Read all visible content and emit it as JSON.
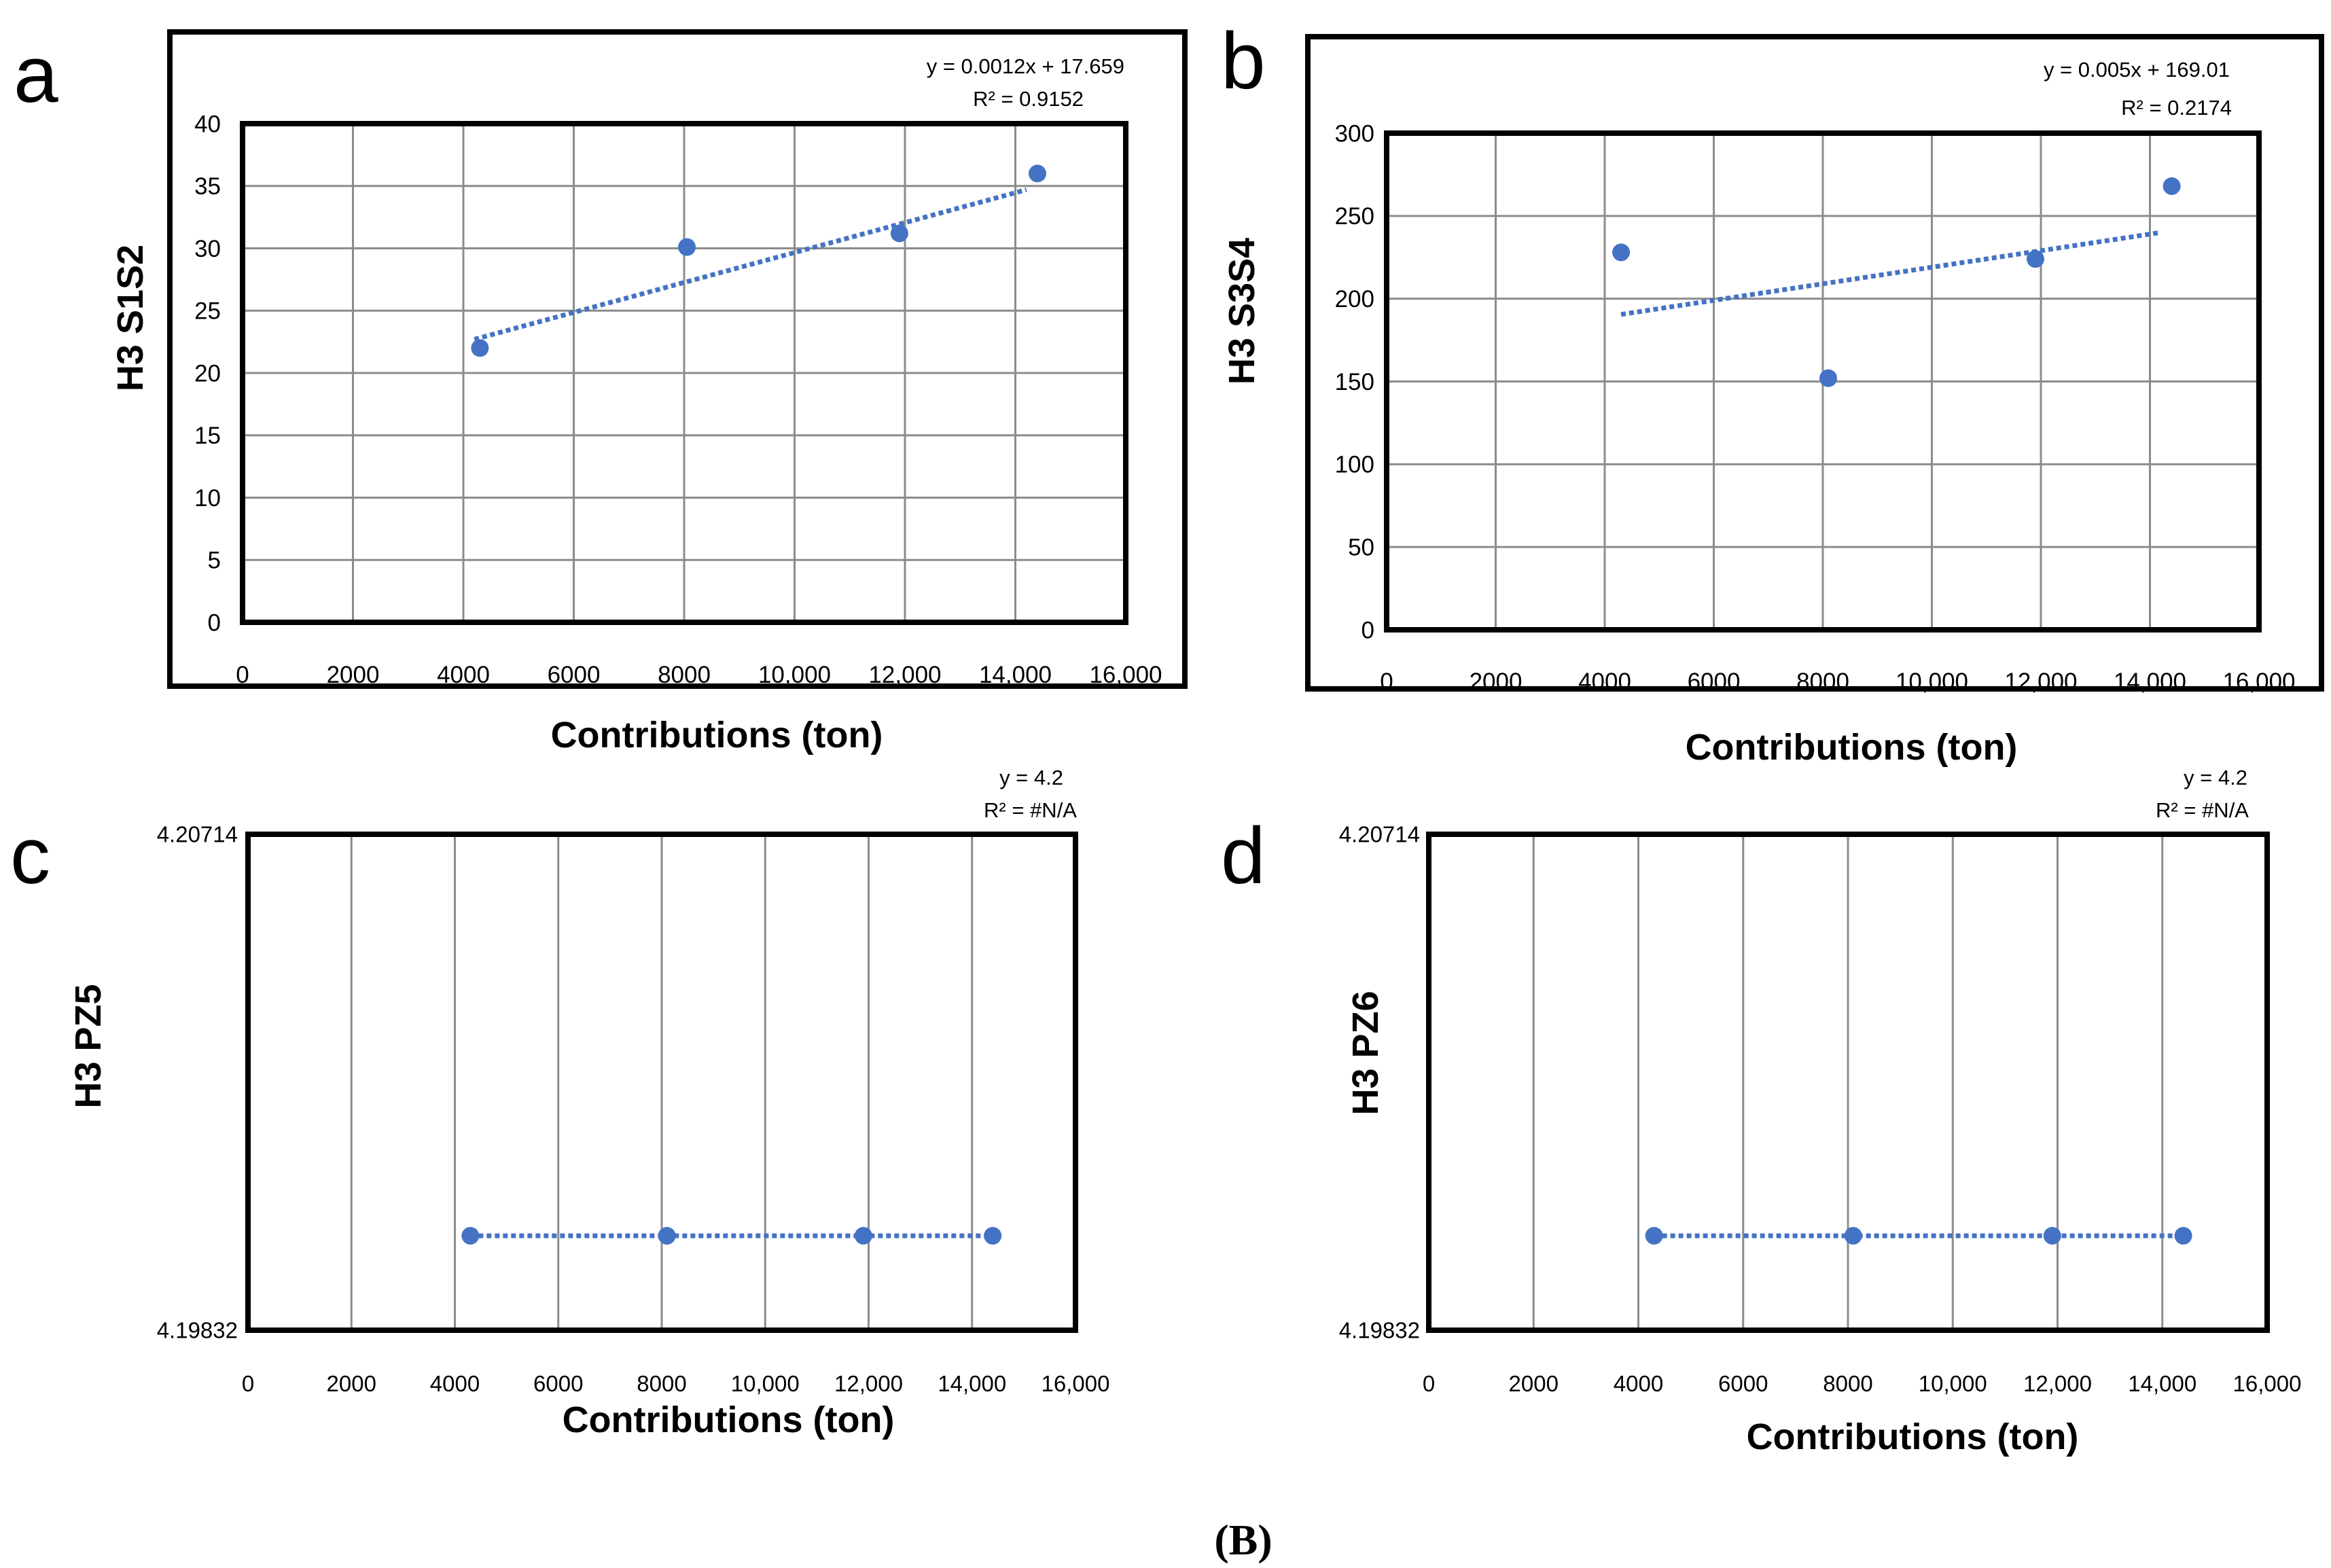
{
  "figure_caption": "(B)",
  "chart_data": [
    {
      "panel": "a",
      "type": "scatter",
      "xlabel": "Contributions (ton)",
      "ylabel": "H3 S1S2",
      "xlim": [
        0,
        16000
      ],
      "ylim": [
        0,
        40
      ],
      "x_ticks": [
        "0",
        "2000",
        "4000",
        "6000",
        "8000",
        "10,000",
        "12,000",
        "14,000",
        "16,000"
      ],
      "y_ticks": [
        "0",
        "5",
        "10",
        "15",
        "20",
        "25",
        "30",
        "35",
        "40"
      ],
      "grid": true,
      "point_color": "#4472C4",
      "points": [
        {
          "x": 4300,
          "y": 22
        },
        {
          "x": 8050,
          "y": 30.1
        },
        {
          "x": 11900,
          "y": 31.2
        },
        {
          "x": 14400,
          "y": 36
        }
      ],
      "trendline": {
        "slope": 0.0012,
        "intercept": 17.659,
        "x_range": [
          4200,
          14200
        ]
      },
      "equation": "y = 0.0012x + 17.659",
      "r_squared": "R² = 0.9152"
    },
    {
      "panel": "b",
      "type": "scatter",
      "xlabel": "Contributions (ton)",
      "ylabel": "H3 S3S4",
      "xlim": [
        0,
        16000
      ],
      "ylim": [
        0,
        300
      ],
      "x_ticks": [
        "0",
        "2000",
        "4000",
        "6000",
        "8000",
        "10,000",
        "12,000",
        "14,000",
        "16,000"
      ],
      "y_ticks": [
        "0",
        "50",
        "100",
        "150",
        "200",
        "250",
        "300"
      ],
      "grid": true,
      "point_color": "#4472C4",
      "points": [
        {
          "x": 4300,
          "y": 228
        },
        {
          "x": 8100,
          "y": 152
        },
        {
          "x": 11900,
          "y": 224
        },
        {
          "x": 14400,
          "y": 268
        }
      ],
      "trendline": {
        "slope": 0.005,
        "intercept": 169.01,
        "x_range": [
          4300,
          14200
        ]
      },
      "equation": "y = 0.005x + 169.01",
      "r_squared": "R² = 0.2174"
    },
    {
      "panel": "c",
      "type": "scatter",
      "xlabel": "Contributions (ton)",
      "ylabel": "H3 PZ5",
      "xlim": [
        0,
        16000
      ],
      "ylim": [
        4.19832,
        4.20714
      ],
      "x_ticks": [
        "0",
        "2000",
        "4000",
        "6000",
        "8000",
        "10,000",
        "12,000",
        "14,000",
        "16,000"
      ],
      "y_ticks": [
        "4.19832",
        "4.20714"
      ],
      "grid": true,
      "point_color": "#4472C4",
      "points": [
        {
          "x": 4300,
          "y": 4.2
        },
        {
          "x": 8100,
          "y": 4.2
        },
        {
          "x": 11900,
          "y": 4.2
        },
        {
          "x": 14400,
          "y": 4.2
        }
      ],
      "trendline": {
        "slope": 0,
        "intercept": 4.2,
        "x_range": [
          4300,
          14400
        ]
      },
      "equation": "y = 4.2",
      "r_squared": "R² = #N/A"
    },
    {
      "panel": "d",
      "type": "scatter",
      "xlabel": "Contributions (ton)",
      "ylabel": "H3 PZ6",
      "xlim": [
        0,
        16000
      ],
      "ylim": [
        4.19832,
        4.20714
      ],
      "x_ticks": [
        "0",
        "2000",
        "4000",
        "6000",
        "8000",
        "10,000",
        "12,000",
        "14,000",
        "16,000"
      ],
      "y_ticks": [
        "4.19832",
        "4.20714"
      ],
      "grid": true,
      "point_color": "#4472C4",
      "points": [
        {
          "x": 4300,
          "y": 4.2
        },
        {
          "x": 8100,
          "y": 4.2
        },
        {
          "x": 11900,
          "y": 4.2
        },
        {
          "x": 14400,
          "y": 4.2
        }
      ],
      "trendline": {
        "slope": 0,
        "intercept": 4.2,
        "x_range": [
          4300,
          14400
        ]
      },
      "equation": "y = 4.2",
      "r_squared": "R² = #N/A"
    }
  ]
}
